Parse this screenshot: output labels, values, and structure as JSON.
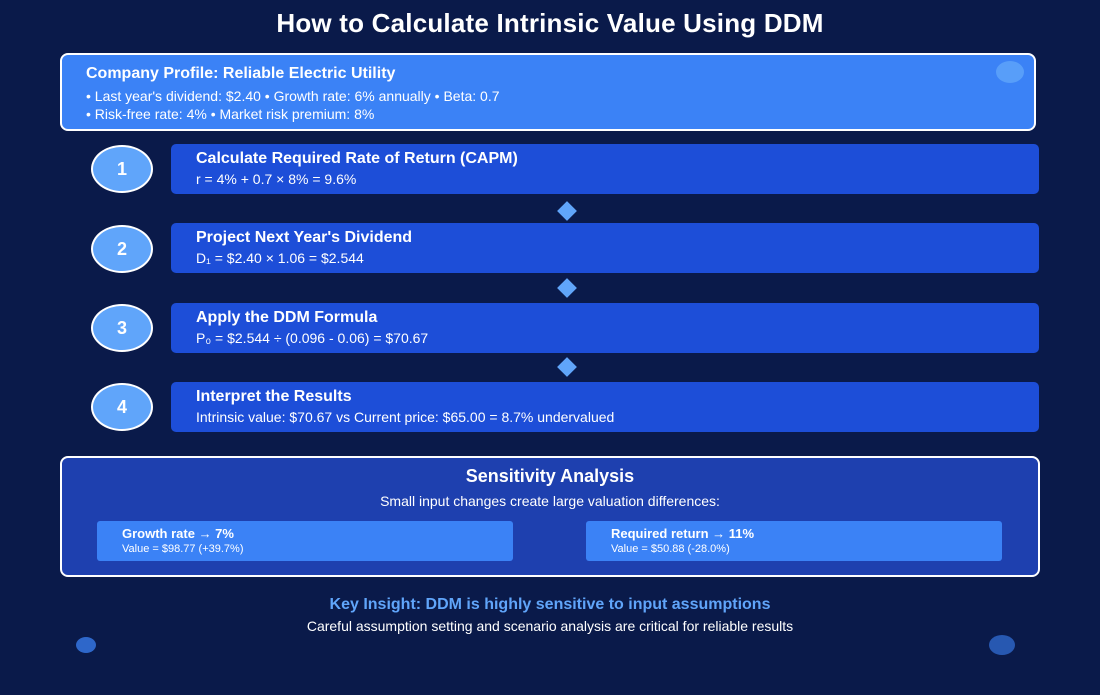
{
  "title": "How to Calculate Intrinsic Value Using DDM",
  "profile": {
    "title": "Company Profile: Reliable Electric Utility",
    "line1": "• Last year's dividend: $2.40 • Growth rate: 6% annually • Beta: 0.7",
    "line2": "• Risk-free rate: 4% • Market risk premium: 8%"
  },
  "steps": [
    {
      "number": "1",
      "title": "Calculate Required Rate of Return (CAPM)",
      "formula": "r = 4% + 0.7 × 8% = 9.6%"
    },
    {
      "number": "2",
      "title": "Project Next Year's Dividend",
      "formula": "D₁ = $2.40 × 1.06 = $2.544"
    },
    {
      "number": "3",
      "title": "Apply the DDM Formula",
      "formula": "P₀ = $2.544 ÷ (0.096 - 0.06) = $70.67"
    },
    {
      "number": "4",
      "title": "Interpret the Results",
      "formula": "Intrinsic value: $70.67 vs Current price: $65.00 = 8.7% undervalued"
    }
  ],
  "sensitivity": {
    "title": "Sensitivity Analysis",
    "subtitle": "Small input changes create large valuation differences:",
    "cards": [
      {
        "title": "Growth rate → 7%",
        "value": "Value = $98.77 (+39.7%)"
      },
      {
        "title": "Required return → 11%",
        "value": "Value = $50.88 (-28.0%)"
      }
    ]
  },
  "insight": {
    "title": "Key Insight: DDM is highly sensitive to input assumptions",
    "subtitle": "Careful assumption setting and scenario analysis are critical for reliable results"
  }
}
